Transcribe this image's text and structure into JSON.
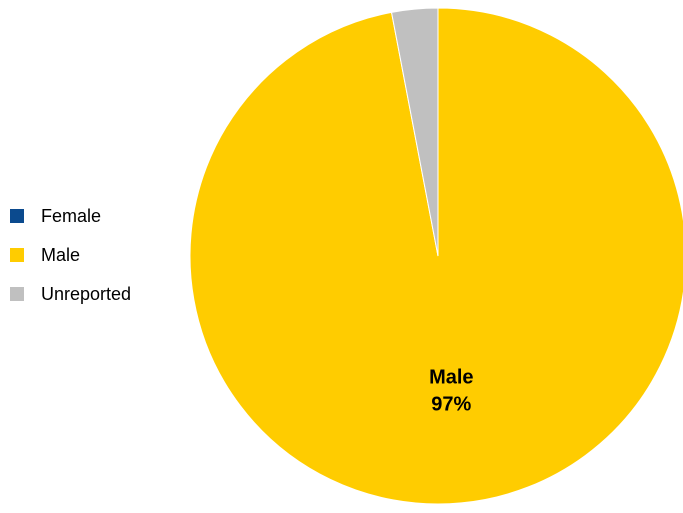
{
  "chart_data": {
    "type": "pie",
    "title": "",
    "legend_position": "left",
    "slices": [
      {
        "label": "Female",
        "value": 0,
        "color": "#0b4a8e",
        "data_label": ""
      },
      {
        "label": "Male",
        "value": 97,
        "color": "#ffcc00",
        "data_label": "Male\n97%"
      },
      {
        "label": "Unreported",
        "value": 3,
        "color": "#c0c0c0",
        "data_label": ""
      }
    ],
    "start_angle_deg": -90,
    "direction": "clockwise"
  }
}
